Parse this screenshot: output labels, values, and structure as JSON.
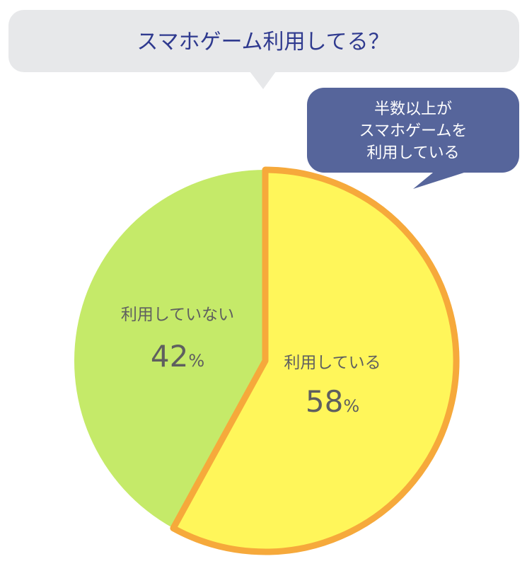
{
  "header": {
    "question": "スマホゲーム利用してる？"
  },
  "callout": {
    "lines": [
      "半数以上が",
      "スマホゲームを",
      "利用している"
    ]
  },
  "colors": {
    "question_bubble_bg": "#e7e8ea",
    "question_text": "#2f3a8f",
    "callout_bg": "#56659b",
    "callout_text": "#ffffff",
    "slice_using": "#fff65a",
    "slice_not_using": "#c5ea69",
    "highlight_border": "#f6a93b",
    "label_text": "#5f5f5f"
  },
  "chart_data": {
    "type": "pie",
    "title": "スマホゲーム利用してる？",
    "slices": [
      {
        "label": "利用している",
        "value": 58,
        "unit": "%",
        "color": "#fff65a",
        "highlight": true
      },
      {
        "label": "利用していない",
        "value": 42,
        "unit": "%",
        "color": "#c5ea69",
        "highlight": false
      }
    ]
  }
}
